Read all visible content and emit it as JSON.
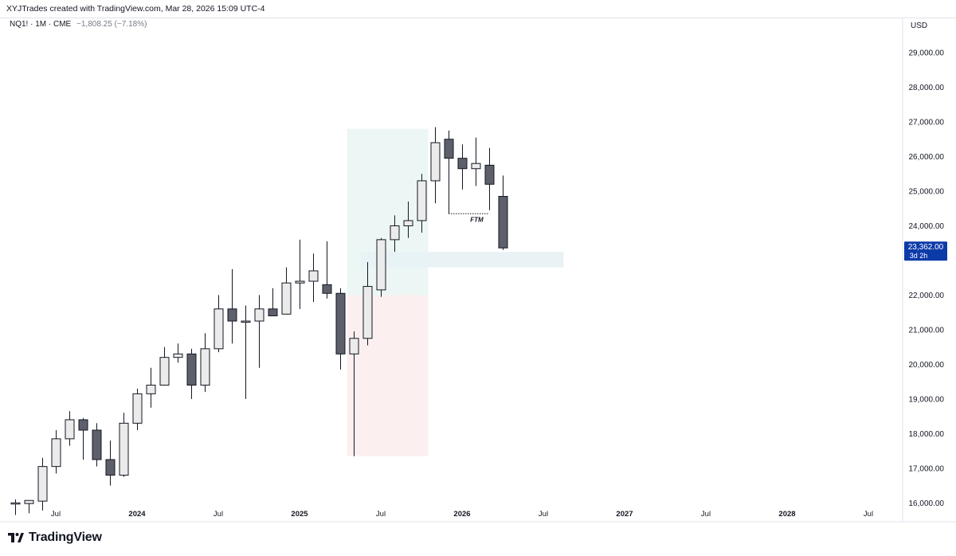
{
  "header": {
    "credit": "XYJTrades created with TradingView.com, Mar 28, 2026 15:09 UTC-4"
  },
  "legend": {
    "symbol": "NQ1! · 1M · CME",
    "change": "−1,808.25 (−7.18%)"
  },
  "axis": {
    "currency": "USD"
  },
  "price_tag": {
    "price": "23,362.00",
    "countdown": "3d 2h",
    "color": "#0d3aa9"
  },
  "brand": {
    "name": "TradingView"
  },
  "colors": {
    "bull_fill": "#ebebeb",
    "bear_fill": "#5d606b",
    "candle_border": "#131722",
    "zone_green": "#e5f4f1",
    "zone_red": "#fbeaea",
    "zone_blue": "#e8f2f5"
  },
  "chart_data": {
    "type": "candlestick",
    "y_range": [
      15800,
      29600
    ],
    "y_ticks": [
      {
        "v": 16000,
        "label": "16,000.00"
      },
      {
        "v": 17000,
        "label": "17,000.00"
      },
      {
        "v": 18000,
        "label": "18,000.00"
      },
      {
        "v": 19000,
        "label": "19,000.00"
      },
      {
        "v": 20000,
        "label": "20,000.00"
      },
      {
        "v": 21000,
        "label": "21,000.00"
      },
      {
        "v": 22000,
        "label": "22,000.00"
      },
      {
        "v": 24000,
        "label": "24,000.00"
      },
      {
        "v": 25000,
        "label": "25,000.00"
      },
      {
        "v": 26000,
        "label": "26,000.00"
      },
      {
        "v": 27000,
        "label": "27,000.00"
      },
      {
        "v": 28000,
        "label": "28,000.00"
      },
      {
        "v": 29000,
        "label": "29,000.00"
      }
    ],
    "x_ticks": [
      {
        "t": "2023-07",
        "label": "Jul",
        "bold": false
      },
      {
        "t": "2024-01",
        "label": "2024",
        "bold": true
      },
      {
        "t": "2024-07",
        "label": "Jul",
        "bold": false
      },
      {
        "t": "2025-01",
        "label": "2025",
        "bold": true
      },
      {
        "t": "2025-07",
        "label": "Jul",
        "bold": false
      },
      {
        "t": "2026-01",
        "label": "2026",
        "bold": true
      },
      {
        "t": "2026-07",
        "label": "Jul",
        "bold": false
      },
      {
        "t": "2027-01",
        "label": "2027",
        "bold": true
      },
      {
        "t": "2027-07",
        "label": "Jul",
        "bold": false
      },
      {
        "t": "2028-01",
        "label": "2028",
        "bold": true
      },
      {
        "t": "2028-07",
        "label": "Jul",
        "bold": false
      }
    ],
    "candles": [
      {
        "t": "2023-04",
        "o": 16000,
        "h": 16100,
        "l": 15650,
        "c": 16000
      },
      {
        "t": "2023-05",
        "o": 15980,
        "h": 16070,
        "l": 15700,
        "c": 16070
      },
      {
        "t": "2023-06",
        "o": 16050,
        "h": 17300,
        "l": 15780,
        "c": 17050
      },
      {
        "t": "2023-07",
        "o": 17050,
        "h": 18100,
        "l": 16850,
        "c": 17850
      },
      {
        "t": "2023-08",
        "o": 17850,
        "h": 18650,
        "l": 17650,
        "c": 18400
      },
      {
        "t": "2023-09",
        "o": 18400,
        "h": 18450,
        "l": 17250,
        "c": 18100
      },
      {
        "t": "2023-10",
        "o": 18100,
        "h": 18300,
        "l": 17050,
        "c": 17250
      },
      {
        "t": "2023-11",
        "o": 17250,
        "h": 17800,
        "l": 16500,
        "c": 16800
      },
      {
        "t": "2023-12",
        "o": 16800,
        "h": 18600,
        "l": 16750,
        "c": 18300
      },
      {
        "t": "2024-01",
        "o": 18300,
        "h": 19300,
        "l": 18100,
        "c": 19150
      },
      {
        "t": "2024-02",
        "o": 19150,
        "h": 19900,
        "l": 18750,
        "c": 19400
      },
      {
        "t": "2024-03",
        "o": 19400,
        "h": 20500,
        "l": 19400,
        "c": 20200
      },
      {
        "t": "2024-04",
        "o": 20200,
        "h": 20600,
        "l": 20050,
        "c": 20300
      },
      {
        "t": "2024-05",
        "o": 20300,
        "h": 20450,
        "l": 19000,
        "c": 19400
      },
      {
        "t": "2024-06",
        "o": 19400,
        "h": 20900,
        "l": 19200,
        "c": 20450
      },
      {
        "t": "2024-07",
        "o": 20450,
        "h": 22000,
        "l": 20350,
        "c": 21600
      },
      {
        "t": "2024-08",
        "o": 21600,
        "h": 22750,
        "l": 20600,
        "c": 21250
      },
      {
        "t": "2024-09",
        "o": 21250,
        "h": 21700,
        "l": 19000,
        "c": 21250
      },
      {
        "t": "2024-10",
        "o": 21250,
        "h": 22000,
        "l": 19900,
        "c": 21600
      },
      {
        "t": "2024-11",
        "o": 21600,
        "h": 22200,
        "l": 21400,
        "c": 21400
      },
      {
        "t": "2024-12",
        "o": 21450,
        "h": 22800,
        "l": 21450,
        "c": 22350
      },
      {
        "t": "2025-01",
        "o": 22350,
        "h": 23600,
        "l": 21600,
        "c": 22400
      },
      {
        "t": "2025-02",
        "o": 22400,
        "h": 23200,
        "l": 21800,
        "c": 22700
      },
      {
        "t": "2025-03",
        "o": 22300,
        "h": 23550,
        "l": 21900,
        "c": 22050
      },
      {
        "t": "2025-04",
        "o": 22050,
        "h": 22200,
        "l": 19850,
        "c": 20300
      },
      {
        "t": "2025-05",
        "o": 20300,
        "h": 20950,
        "l": 17350,
        "c": 20750
      },
      {
        "t": "2025-06",
        "o": 20750,
        "h": 22950,
        "l": 20550,
        "c": 22250
      },
      {
        "t": "2025-07",
        "o": 22150,
        "h": 23650,
        "l": 21950,
        "c": 23600
      },
      {
        "t": "2025-08",
        "o": 23600,
        "h": 24300,
        "l": 23250,
        "c": 24000
      },
      {
        "t": "2025-09",
        "o": 24000,
        "h": 24700,
        "l": 23650,
        "c": 24150
      },
      {
        "t": "2025-10",
        "o": 24150,
        "h": 25500,
        "l": 23800,
        "c": 25300
      },
      {
        "t": "2025-11",
        "o": 25300,
        "h": 26850,
        "l": 24650,
        "c": 26400
      },
      {
        "t": "2025-12",
        "o": 26500,
        "h": 26750,
        "l": 24350,
        "c": 25950
      },
      {
        "t": "2026-01",
        "o": 25950,
        "h": 26350,
        "l": 25050,
        "c": 25650
      },
      {
        "t": "2026-02",
        "o": 25650,
        "h": 26550,
        "l": 25150,
        "c": 25800
      },
      {
        "t": "2026-03",
        "o": 25750,
        "h": 26250,
        "l": 24450,
        "c": 25200
      },
      {
        "t": "2026-04",
        "o": 24850,
        "h": 25450,
        "l": 23300,
        "c": 23362
      }
    ],
    "annotations": [
      {
        "type": "line",
        "label": "FTM",
        "t_from": "2025-12",
        "t_to": "2026-03",
        "price": 24350
      }
    ],
    "zones": [
      {
        "name": "green",
        "t_from": "2025-05",
        "t_to": "2025-10",
        "top": 26800,
        "bottom": 22000
      },
      {
        "name": "red",
        "t_from": "2025-05",
        "t_to": "2025-10",
        "top": 22000,
        "bottom": 17350
      },
      {
        "name": "blue",
        "t_from": "2025-06",
        "t_to": "2026-08",
        "top": 23250,
        "bottom": 22800
      }
    ],
    "grid": false
  }
}
